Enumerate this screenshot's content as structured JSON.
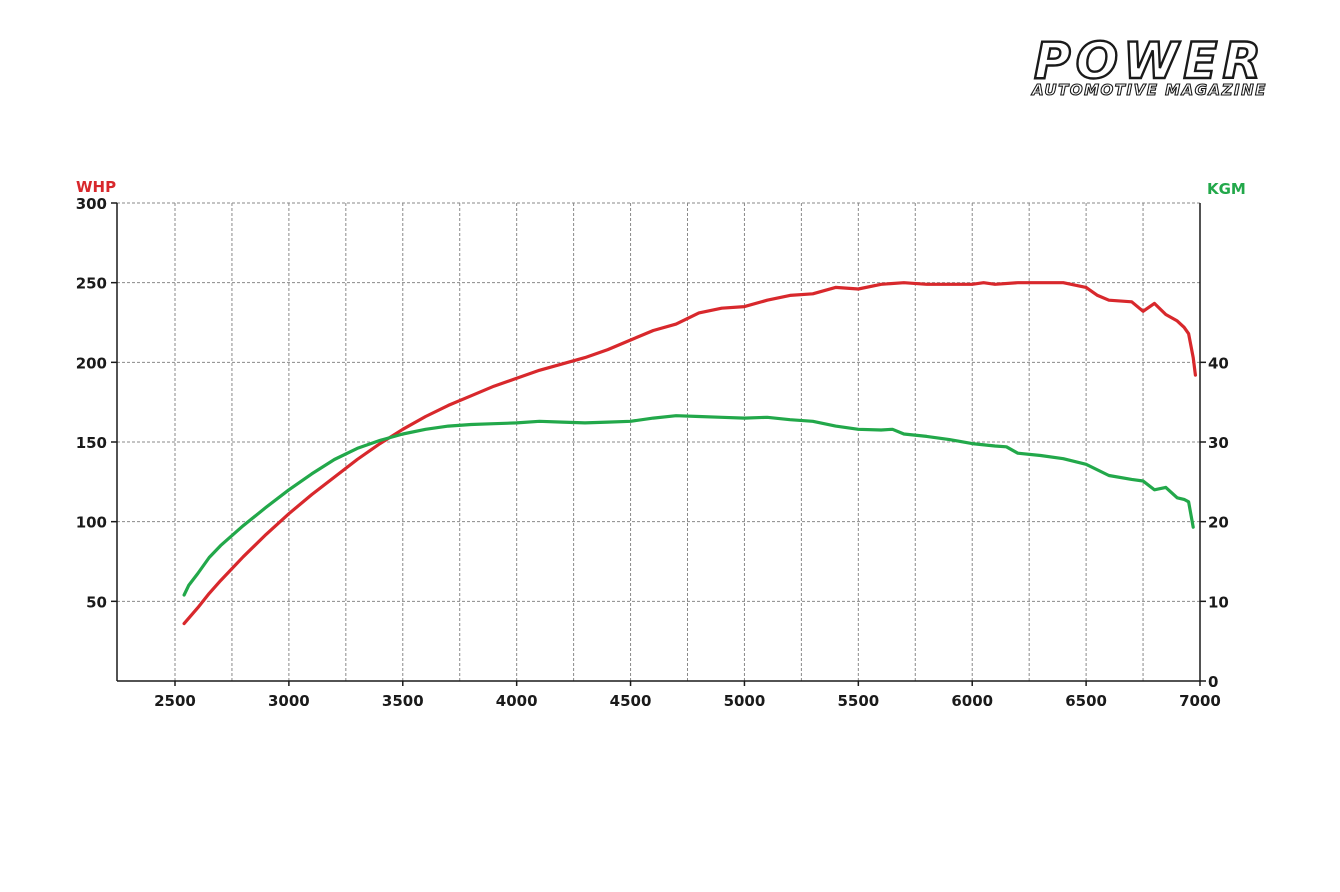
{
  "brand": {
    "name": "POWER",
    "tagline": "AUTOMOTIVE MAGAZINE"
  },
  "colors": {
    "power": "#d8282c",
    "torque": "#22a84a",
    "axis": "#1a1a1a",
    "grid": "#8a8a8a"
  },
  "chart_data": {
    "type": "line",
    "x_ticks": [
      "2500",
      "3000",
      "3500",
      "4000",
      "4500",
      "5000",
      "5500",
      "6000",
      "6500",
      "7000"
    ],
    "y_left_label": "WHP",
    "y_left_ticks": [
      "50",
      "100",
      "150",
      "200",
      "250",
      "300"
    ],
    "y_right_label": "KGM",
    "y_right_ticks": [
      "0",
      "10",
      "20",
      "30",
      "40"
    ],
    "xlim": [
      2500,
      7000
    ],
    "ylim_left": [
      0,
      300
    ],
    "ylim_right": [
      0,
      60
    ],
    "grid": true,
    "series": [
      {
        "axis": "left",
        "color": "#d8282c",
        "points": [
          [
            2540,
            36
          ],
          [
            2600,
            46
          ],
          [
            2650,
            55
          ],
          [
            2700,
            63
          ],
          [
            2800,
            78
          ],
          [
            2900,
            92
          ],
          [
            3000,
            105
          ],
          [
            3100,
            117
          ],
          [
            3200,
            128
          ],
          [
            3300,
            139
          ],
          [
            3400,
            149
          ],
          [
            3500,
            158
          ],
          [
            3600,
            166
          ],
          [
            3700,
            173
          ],
          [
            3800,
            179
          ],
          [
            3900,
            185
          ],
          [
            4000,
            190
          ],
          [
            4100,
            195
          ],
          [
            4200,
            199
          ],
          [
            4300,
            203
          ],
          [
            4400,
            208
          ],
          [
            4500,
            214
          ],
          [
            4600,
            220
          ],
          [
            4700,
            224
          ],
          [
            4800,
            231
          ],
          [
            4900,
            234
          ],
          [
            5000,
            235
          ],
          [
            5100,
            239
          ],
          [
            5200,
            242
          ],
          [
            5300,
            243
          ],
          [
            5400,
            247
          ],
          [
            5500,
            246
          ],
          [
            5600,
            249
          ],
          [
            5700,
            250
          ],
          [
            5800,
            249
          ],
          [
            5900,
            249
          ],
          [
            6000,
            249
          ],
          [
            6050,
            250
          ],
          [
            6100,
            249
          ],
          [
            6200,
            250
          ],
          [
            6300,
            250
          ],
          [
            6400,
            250
          ],
          [
            6500,
            247
          ],
          [
            6550,
            242
          ],
          [
            6600,
            239
          ],
          [
            6700,
            238
          ],
          [
            6750,
            232
          ],
          [
            6800,
            237
          ],
          [
            6850,
            230
          ],
          [
            6900,
            226
          ],
          [
            6930,
            222
          ],
          [
            6950,
            218
          ],
          [
            6970,
            203
          ],
          [
            6980,
            192
          ]
        ]
      },
      {
        "axis": "right",
        "color": "#22a84a",
        "points": [
          [
            2540,
            10.8
          ],
          [
            2560,
            12
          ],
          [
            2600,
            13.5
          ],
          [
            2650,
            15.5
          ],
          [
            2700,
            17
          ],
          [
            2800,
            19.5
          ],
          [
            2900,
            21.8
          ],
          [
            3000,
            24
          ],
          [
            3100,
            26
          ],
          [
            3200,
            27.8
          ],
          [
            3300,
            29.2
          ],
          [
            3400,
            30.2
          ],
          [
            3500,
            31
          ],
          [
            3600,
            31.6
          ],
          [
            3700,
            32
          ],
          [
            3800,
            32.2
          ],
          [
            3900,
            32.3
          ],
          [
            4000,
            32.4
          ],
          [
            4100,
            32.6
          ],
          [
            4200,
            32.5
          ],
          [
            4300,
            32.4
          ],
          [
            4400,
            32.5
          ],
          [
            4500,
            32.6
          ],
          [
            4600,
            33
          ],
          [
            4700,
            33.3
          ],
          [
            4800,
            33.2
          ],
          [
            4900,
            33.1
          ],
          [
            5000,
            33
          ],
          [
            5100,
            33.1
          ],
          [
            5200,
            32.8
          ],
          [
            5300,
            32.6
          ],
          [
            5400,
            32
          ],
          [
            5500,
            31.6
          ],
          [
            5600,
            31.5
          ],
          [
            5650,
            31.6
          ],
          [
            5700,
            31
          ],
          [
            5800,
            30.7
          ],
          [
            5900,
            30.3
          ],
          [
            6000,
            29.8
          ],
          [
            6100,
            29.5
          ],
          [
            6150,
            29.4
          ],
          [
            6200,
            28.6
          ],
          [
            6300,
            28.3
          ],
          [
            6400,
            27.9
          ],
          [
            6500,
            27.2
          ],
          [
            6600,
            25.8
          ],
          [
            6700,
            25.3
          ],
          [
            6750,
            25.1
          ],
          [
            6800,
            24
          ],
          [
            6850,
            24.3
          ],
          [
            6900,
            23
          ],
          [
            6930,
            22.8
          ],
          [
            6950,
            22.5
          ],
          [
            6970,
            19.3
          ]
        ]
      }
    ]
  }
}
